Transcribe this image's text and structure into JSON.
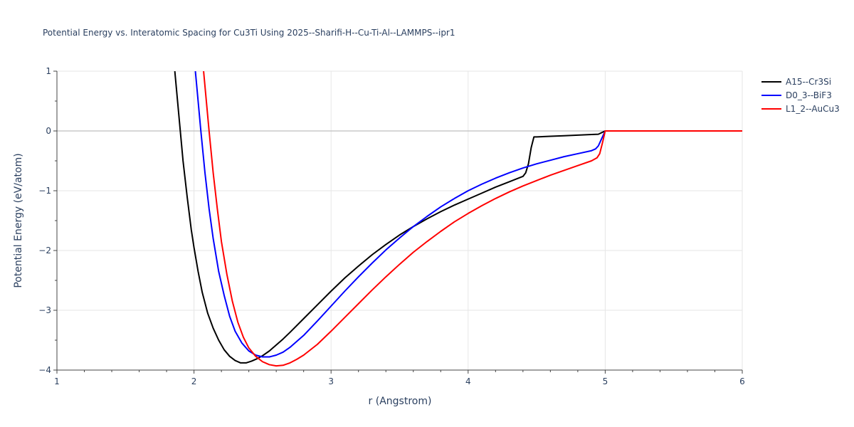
{
  "chart_data": {
    "type": "line",
    "title": "Potential Energy vs. Interatomic Spacing for Cu3Ti Using 2025--Sharifi-H--Cu-Ti-Al--LAMMPS--ipr1",
    "xlabel": "r (Angstrom)",
    "ylabel": "Potential Energy (eV/atom)",
    "xlim": [
      1,
      6
    ],
    "ylim": [
      -4,
      1
    ],
    "xticks": [
      1,
      2,
      3,
      4,
      5,
      6
    ],
    "xtick_labels": [
      "1",
      "2",
      "3",
      "4",
      "5",
      "6"
    ],
    "yticks": [
      1,
      0,
      -1,
      -2,
      -3,
      -4
    ],
    "ytick_labels": [
      "1",
      "0",
      "−1",
      "−2",
      "−3",
      "−4"
    ],
    "grid": true,
    "legend_position": "top-right",
    "series": [
      {
        "name": "A15--Cr3Si",
        "color": "#000000",
        "x": [
          1.86,
          1.88,
          1.9,
          1.92,
          1.95,
          1.98,
          2.0,
          2.03,
          2.06,
          2.1,
          2.14,
          2.18,
          2.22,
          2.26,
          2.3,
          2.34,
          2.38,
          2.42,
          2.46,
          2.5,
          2.55,
          2.6,
          2.65,
          2.7,
          2.8,
          2.9,
          3.0,
          3.1,
          3.2,
          3.3,
          3.4,
          3.5,
          3.6,
          3.7,
          3.8,
          3.9,
          4.0,
          4.1,
          4.2,
          4.3,
          4.4,
          4.42,
          4.44,
          4.46,
          4.48,
          4.5,
          4.6,
          4.7,
          4.8,
          4.9,
          4.95,
          5.0,
          5.5,
          6.0
        ],
        "y": [
          1.0,
          0.5,
          0.0,
          -0.5,
          -1.1,
          -1.65,
          -1.95,
          -2.35,
          -2.7,
          -3.05,
          -3.3,
          -3.5,
          -3.66,
          -3.77,
          -3.84,
          -3.88,
          -3.88,
          -3.85,
          -3.81,
          -3.76,
          -3.68,
          -3.58,
          -3.48,
          -3.37,
          -3.14,
          -2.91,
          -2.68,
          -2.46,
          -2.26,
          -2.07,
          -1.9,
          -1.74,
          -1.6,
          -1.47,
          -1.35,
          -1.24,
          -1.14,
          -1.04,
          -0.94,
          -0.85,
          -0.76,
          -0.7,
          -0.55,
          -0.28,
          -0.1,
          -0.1,
          -0.09,
          -0.08,
          -0.07,
          -0.06,
          -0.055,
          0.0,
          0.0,
          0.0
        ]
      },
      {
        "name": "D0_3--BiF3",
        "color": "#0000ff",
        "x": [
          2.01,
          2.03,
          2.05,
          2.08,
          2.11,
          2.14,
          2.18,
          2.22,
          2.26,
          2.3,
          2.35,
          2.4,
          2.45,
          2.5,
          2.55,
          2.6,
          2.65,
          2.7,
          2.8,
          2.9,
          3.0,
          3.1,
          3.2,
          3.3,
          3.4,
          3.5,
          3.6,
          3.7,
          3.8,
          3.9,
          4.0,
          4.1,
          4.2,
          4.3,
          4.4,
          4.5,
          4.6,
          4.7,
          4.8,
          4.9,
          4.93,
          4.95,
          4.97,
          5.0,
          5.5,
          6.0
        ],
        "y": [
          1.0,
          0.5,
          0.0,
          -0.7,
          -1.3,
          -1.8,
          -2.35,
          -2.75,
          -3.1,
          -3.35,
          -3.55,
          -3.68,
          -3.75,
          -3.78,
          -3.78,
          -3.75,
          -3.7,
          -3.62,
          -3.42,
          -3.18,
          -2.93,
          -2.68,
          -2.44,
          -2.21,
          -1.99,
          -1.79,
          -1.6,
          -1.43,
          -1.27,
          -1.13,
          -1.0,
          -0.89,
          -0.79,
          -0.7,
          -0.62,
          -0.55,
          -0.49,
          -0.43,
          -0.38,
          -0.33,
          -0.3,
          -0.25,
          -0.15,
          0.0,
          0.0,
          0.0
        ]
      },
      {
        "name": "L1_2--AuCu3",
        "color": "#ff0000",
        "x": [
          2.07,
          2.09,
          2.11,
          2.14,
          2.17,
          2.2,
          2.24,
          2.28,
          2.32,
          2.36,
          2.4,
          2.45,
          2.5,
          2.55,
          2.6,
          2.65,
          2.7,
          2.75,
          2.8,
          2.9,
          3.0,
          3.1,
          3.2,
          3.3,
          3.4,
          3.5,
          3.6,
          3.7,
          3.8,
          3.9,
          4.0,
          4.1,
          4.2,
          4.3,
          4.4,
          4.5,
          4.6,
          4.7,
          4.8,
          4.9,
          4.94,
          4.96,
          4.98,
          5.0,
          5.5,
          6.0
        ],
        "y": [
          1.0,
          0.5,
          0.0,
          -0.7,
          -1.3,
          -1.85,
          -2.4,
          -2.85,
          -3.2,
          -3.45,
          -3.63,
          -3.77,
          -3.86,
          -3.91,
          -3.93,
          -3.92,
          -3.88,
          -3.82,
          -3.75,
          -3.57,
          -3.35,
          -3.12,
          -2.89,
          -2.66,
          -2.44,
          -2.23,
          -2.03,
          -1.85,
          -1.68,
          -1.52,
          -1.38,
          -1.25,
          -1.13,
          -1.02,
          -0.92,
          -0.83,
          -0.74,
          -0.66,
          -0.58,
          -0.5,
          -0.45,
          -0.38,
          -0.2,
          0.0,
          0.0,
          0.0
        ]
      }
    ]
  }
}
